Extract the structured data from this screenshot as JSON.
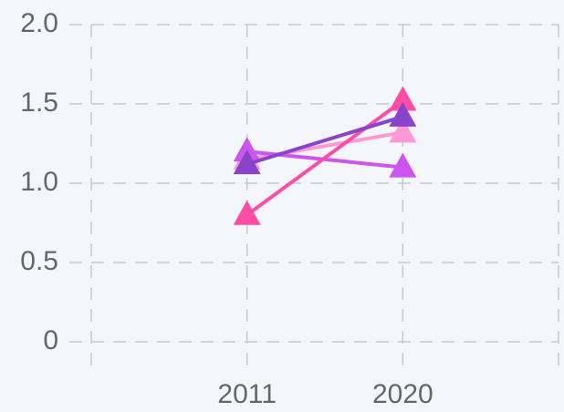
{
  "chart_data": {
    "type": "line",
    "categories": [
      null,
      "2011",
      "2020",
      null
    ],
    "series": [
      {
        "color": "#ff99d6",
        "values": [
          null,
          1.15,
          1.32,
          null
        ]
      },
      {
        "color": "#cc55ee",
        "values": [
          null,
          1.2,
          1.1,
          null
        ]
      },
      {
        "color": "#ff4da6",
        "values": [
          null,
          0.8,
          1.52,
          null
        ]
      },
      {
        "color": "#8844cc",
        "values": [
          null,
          1.12,
          1.42,
          null
        ]
      }
    ],
    "ylim": [
      0,
      2
    ],
    "yticks": [
      0,
      0.5,
      {
        "value": 1,
        "label": "1.0"
      },
      1.5,
      {
        "value": 2,
        "label": "2.0"
      }
    ],
    "grid": true
  }
}
